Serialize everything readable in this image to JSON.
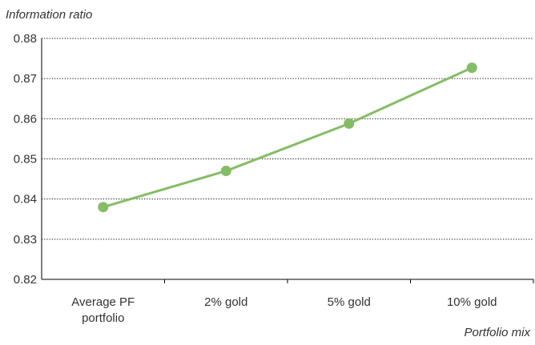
{
  "chart_data": {
    "type": "line",
    "title": "",
    "ylabel": "Information ratio",
    "xlabel": "Portfolio mix",
    "categories": [
      [
        "Average PF",
        "portfolio"
      ],
      [
        "2% gold"
      ],
      [
        "5% gold"
      ],
      [
        "10% gold"
      ]
    ],
    "series": [
      {
        "values": [
          0.838,
          0.847,
          0.8588,
          0.8727
        ]
      }
    ],
    "ylim": [
      0.82,
      0.88
    ],
    "yticks": [
      "0.82",
      "0.83",
      "0.84",
      "0.85",
      "0.86",
      "0.87",
      "0.88"
    ],
    "grid": "horizontal dotted",
    "colors": {
      "line": "#84bd65",
      "marker": "#84bd65",
      "grid": "#000000",
      "axis": "#000000"
    }
  }
}
